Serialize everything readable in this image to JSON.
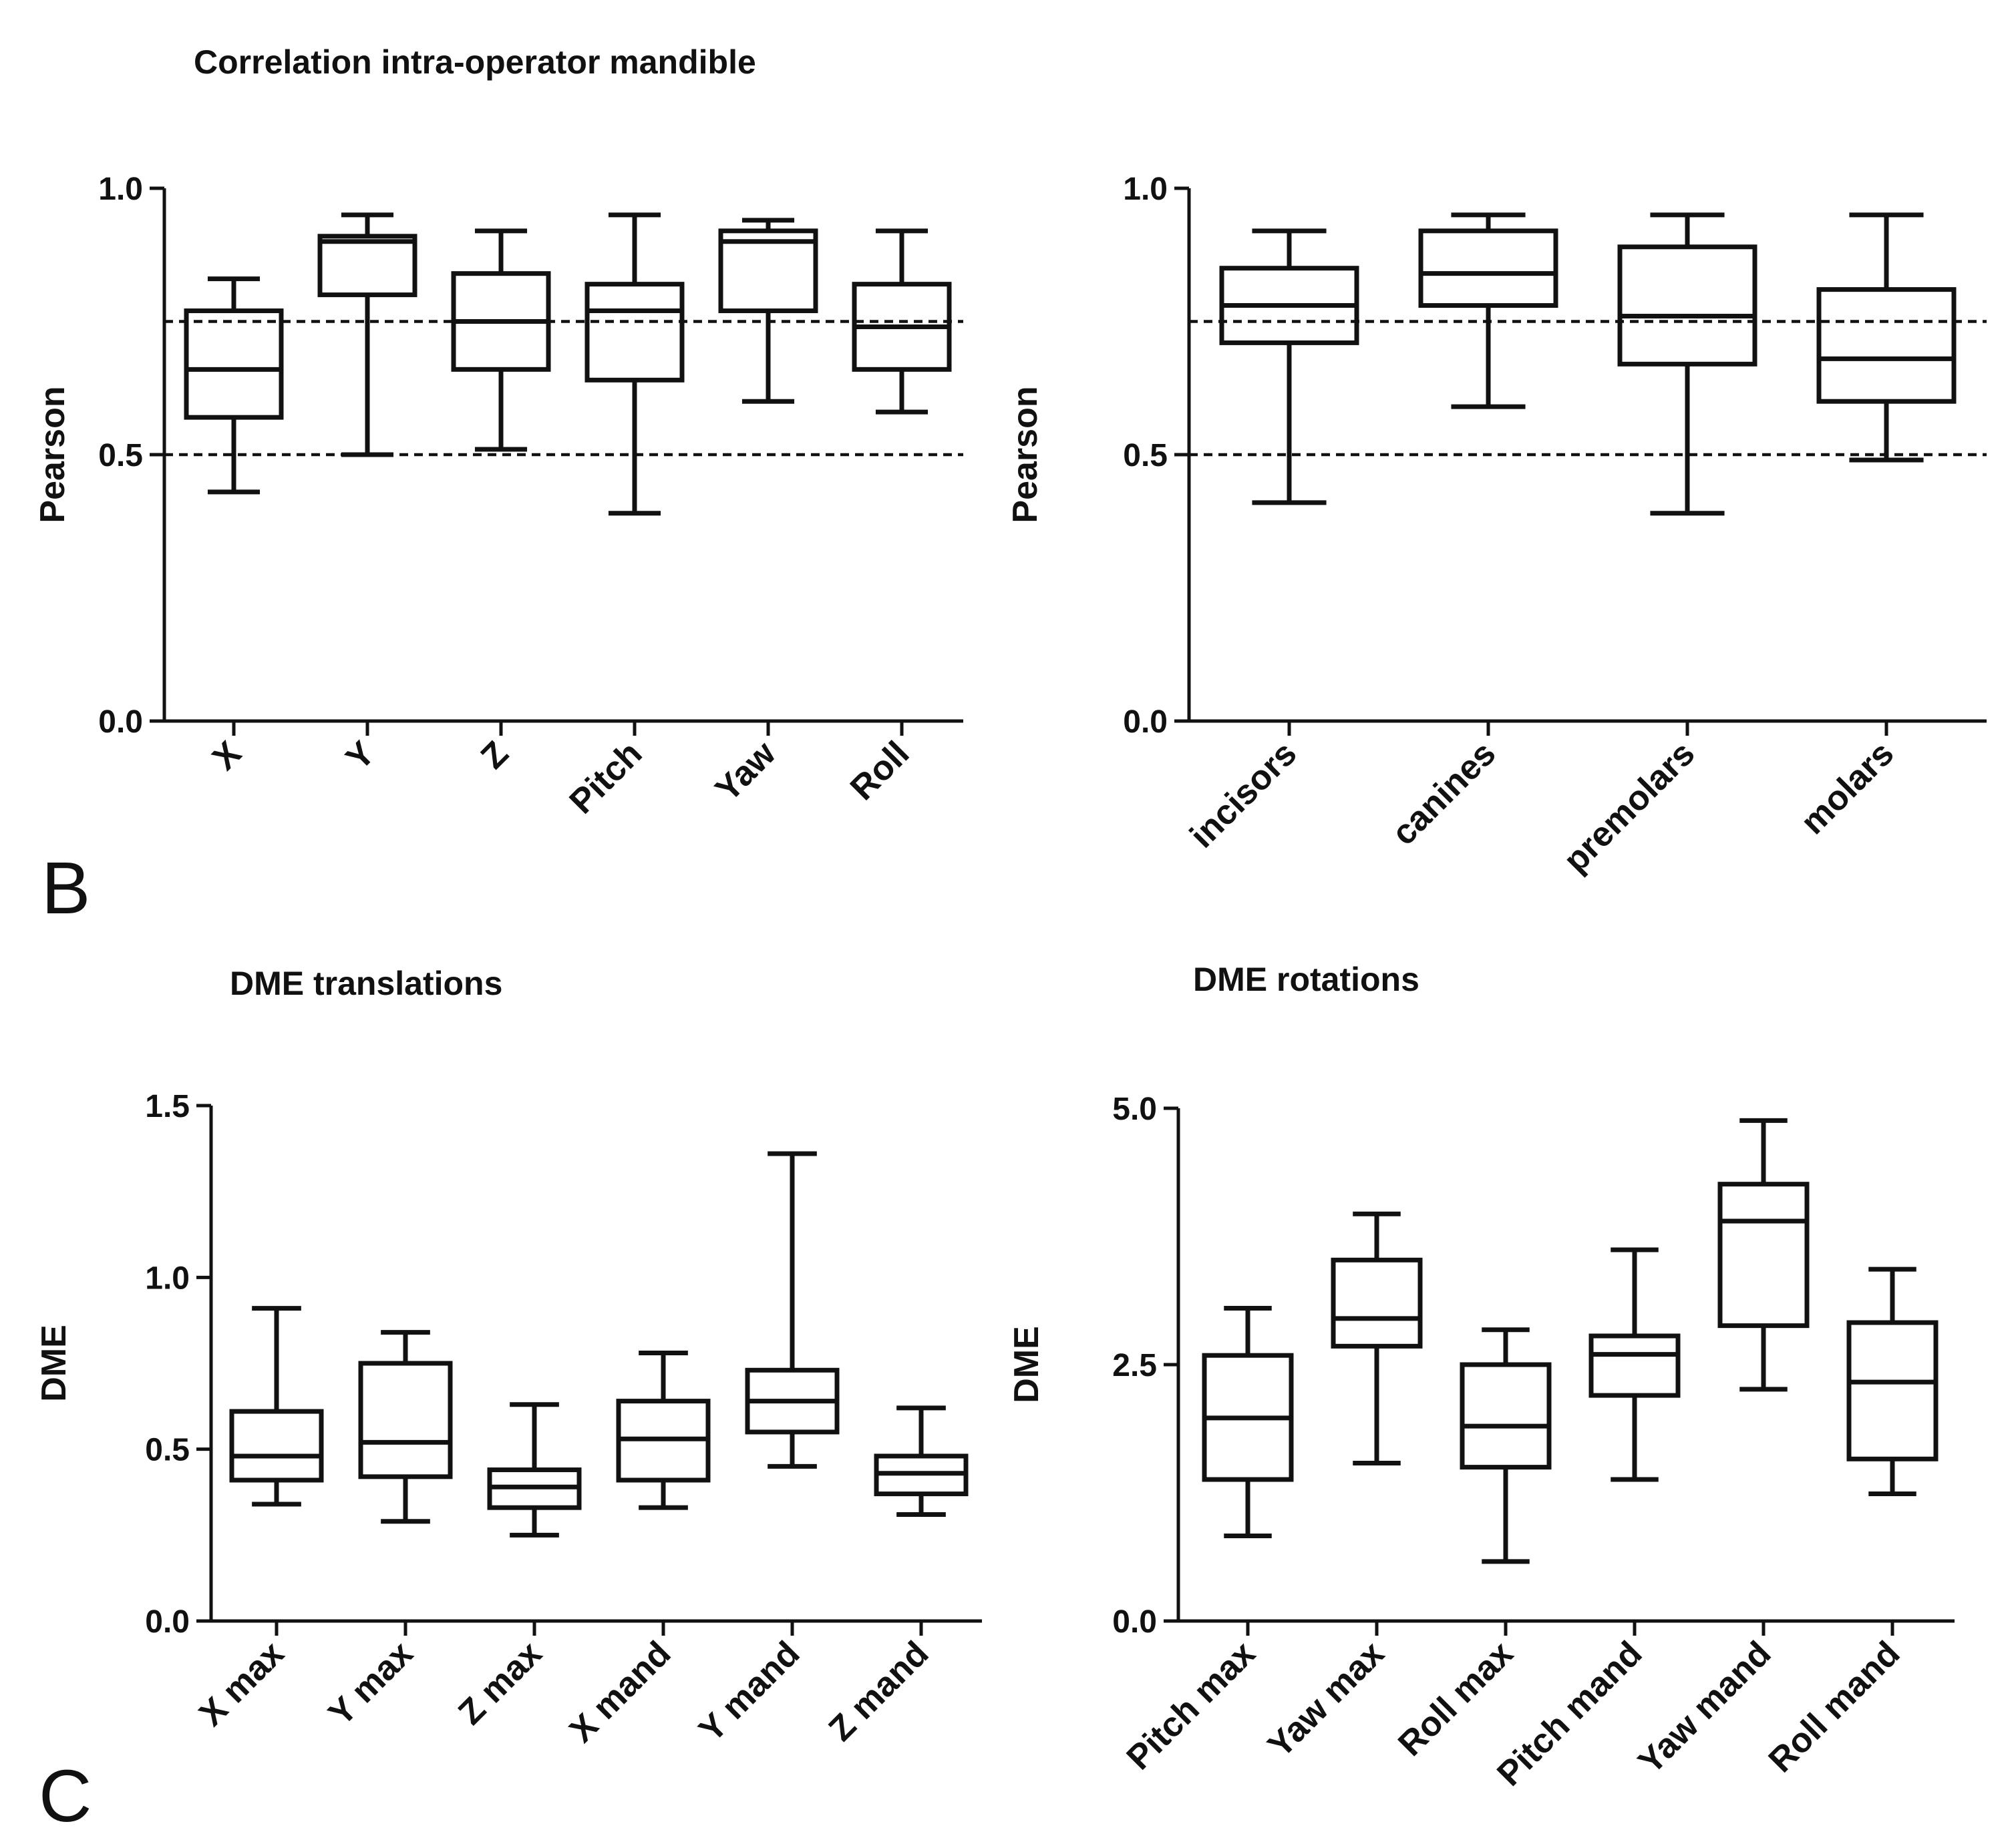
{
  "panel_letters": [
    "B",
    "C"
  ],
  "chart_data": [
    {
      "type": "boxplot",
      "title": "Correlation intra-operator mandible",
      "xlabel": "",
      "ylabel": "Pearson",
      "ylim": [
        0,
        1
      ],
      "yticks": [
        "0.0",
        "0.5",
        "1.0"
      ],
      "ytick_values": [
        0,
        0.5,
        1
      ],
      "reference_lines": [
        0.5,
        0.75
      ],
      "categories": [
        "X",
        "Y",
        "Z",
        "Pitch",
        "Yaw",
        "Roll"
      ],
      "boxes": [
        {
          "min": 0.43,
          "q1": 0.57,
          "median": 0.66,
          "q3": 0.77,
          "max": 0.83
        },
        {
          "min": 0.5,
          "q1": 0.8,
          "median": 0.9,
          "q3": 0.91,
          "max": 0.95
        },
        {
          "min": 0.51,
          "q1": 0.66,
          "median": 0.75,
          "q3": 0.84,
          "max": 0.92
        },
        {
          "min": 0.39,
          "q1": 0.64,
          "median": 0.77,
          "q3": 0.82,
          "max": 0.95
        },
        {
          "min": 0.6,
          "q1": 0.77,
          "median": 0.9,
          "q3": 0.92,
          "max": 0.94
        },
        {
          "min": 0.58,
          "q1": 0.66,
          "median": 0.74,
          "q3": 0.82,
          "max": 0.92
        }
      ]
    },
    {
      "type": "boxplot",
      "title": "",
      "xlabel": "",
      "ylabel": "Pearson",
      "ylim": [
        0,
        1
      ],
      "yticks": [
        "0.0",
        "0.5",
        "1.0"
      ],
      "ytick_values": [
        0,
        0.5,
        1
      ],
      "reference_lines": [
        0.5,
        0.75
      ],
      "categories": [
        "incisors",
        "canines",
        "premolars",
        "molars"
      ],
      "boxes": [
        {
          "min": 0.41,
          "q1": 0.71,
          "median": 0.78,
          "q3": 0.85,
          "max": 0.92
        },
        {
          "min": 0.59,
          "q1": 0.78,
          "median": 0.84,
          "q3": 0.92,
          "max": 0.95
        },
        {
          "min": 0.39,
          "q1": 0.67,
          "median": 0.76,
          "q3": 0.89,
          "max": 0.95
        },
        {
          "min": 0.49,
          "q1": 0.6,
          "median": 0.68,
          "q3": 0.81,
          "max": 0.95
        }
      ]
    },
    {
      "type": "boxplot",
      "title": "DME translations",
      "xlabel": "",
      "ylabel": "DME",
      "ylim": [
        0,
        1.5
      ],
      "yticks": [
        "0.0",
        "0.5",
        "1.0",
        "1.5"
      ],
      "ytick_values": [
        0,
        0.5,
        1,
        1.5
      ],
      "reference_lines": [],
      "categories": [
        "X max",
        "Y max",
        "Z max",
        "X mand",
        "Y mand",
        "Z mand"
      ],
      "boxes": [
        {
          "min": 0.34,
          "q1": 0.41,
          "median": 0.48,
          "q3": 0.61,
          "max": 0.91
        },
        {
          "min": 0.29,
          "q1": 0.42,
          "median": 0.52,
          "q3": 0.75,
          "max": 0.84
        },
        {
          "min": 0.25,
          "q1": 0.33,
          "median": 0.39,
          "q3": 0.44,
          "max": 0.63
        },
        {
          "min": 0.33,
          "q1": 0.41,
          "median": 0.53,
          "q3": 0.64,
          "max": 0.78
        },
        {
          "min": 0.45,
          "q1": 0.55,
          "median": 0.64,
          "q3": 0.73,
          "max": 1.36
        },
        {
          "min": 0.31,
          "q1": 0.37,
          "median": 0.43,
          "q3": 0.48,
          "max": 0.62
        }
      ]
    },
    {
      "type": "boxplot",
      "title": "DME rotations",
      "xlabel": "",
      "ylabel": "DME",
      "ylim": [
        0,
        5
      ],
      "yticks": [
        "0.0",
        "2.5",
        "5.0"
      ],
      "ytick_values": [
        0,
        2.5,
        5
      ],
      "reference_lines": [],
      "categories": [
        "Pitch max",
        "Yaw max",
        "Roll max",
        "Pitch mand",
        "Yaw mand",
        "Roll mand"
      ],
      "boxes": [
        {
          "min": 0.83,
          "q1": 1.38,
          "median": 1.98,
          "q3": 2.59,
          "max": 3.05
        },
        {
          "min": 1.54,
          "q1": 2.68,
          "median": 2.95,
          "q3": 3.52,
          "max": 3.97
        },
        {
          "min": 0.58,
          "q1": 1.5,
          "median": 1.9,
          "q3": 2.5,
          "max": 2.84
        },
        {
          "min": 1.38,
          "q1": 2.2,
          "median": 2.6,
          "q3": 2.78,
          "max": 3.62
        },
        {
          "min": 2.26,
          "q1": 2.88,
          "median": 3.9,
          "q3": 4.26,
          "max": 4.88
        },
        {
          "min": 1.24,
          "q1": 1.58,
          "median": 2.33,
          "q3": 2.91,
          "max": 3.43
        }
      ]
    }
  ]
}
